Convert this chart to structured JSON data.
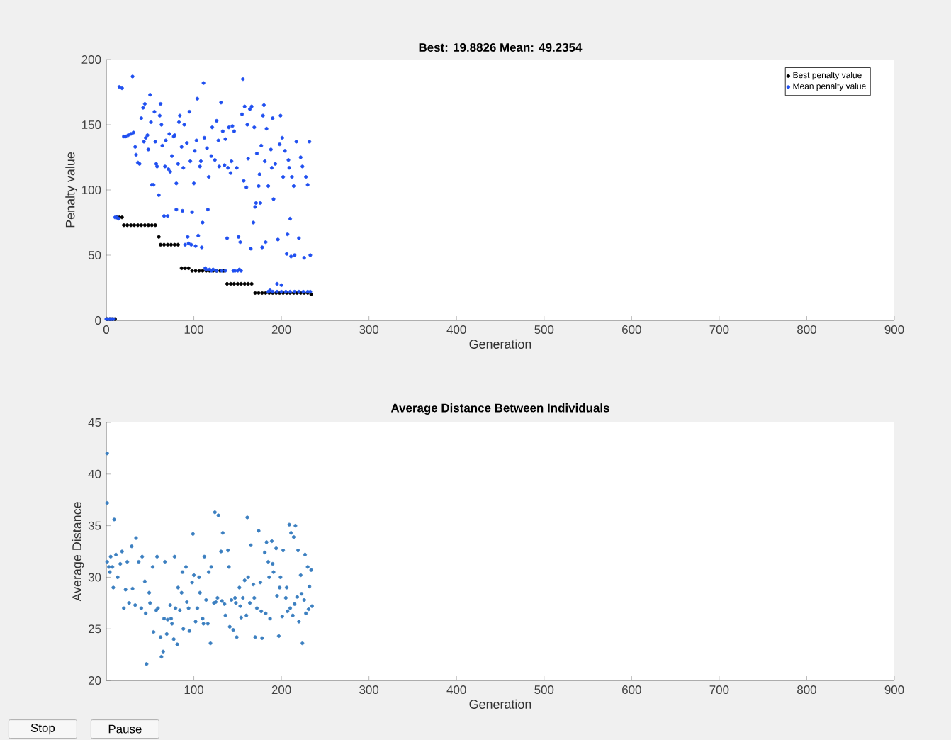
{
  "chart_data": [
    {
      "type": "scatter",
      "title": "Best: 19.8826 Mean: 49.2354",
      "xlabel": "Generation",
      "ylabel": "Penalty value",
      "xlim": [
        0,
        900
      ],
      "ylim": [
        0,
        200
      ],
      "xticks": [
        0,
        100,
        200,
        300,
        400,
        500,
        600,
        700,
        800,
        900
      ],
      "yticks": [
        0,
        50,
        100,
        150,
        200
      ],
      "grid": false,
      "legend": "top right",
      "marker": "circle",
      "series": [
        {
          "name": "Best penalty value",
          "color": "#000000",
          "x": [
            1,
            4,
            7,
            10,
            12,
            15,
            18,
            20,
            24,
            28,
            32,
            36,
            40,
            44,
            48,
            52,
            56,
            60,
            62,
            66,
            70,
            74,
            78,
            82,
            86,
            90,
            94,
            98,
            102,
            106,
            110,
            114,
            118,
            122,
            126,
            130,
            134,
            138,
            142,
            146,
            150,
            154,
            158,
            162,
            166,
            170,
            174,
            178,
            182,
            186,
            190,
            194,
            198,
            202,
            206,
            210,
            214,
            218,
            222,
            226,
            230,
            234
          ],
          "values": [
            1,
            1,
            1,
            1,
            79,
            79,
            79,
            73,
            73,
            73,
            73,
            73,
            73,
            73,
            73,
            73,
            73,
            64,
            58,
            58,
            58,
            58,
            58,
            58,
            40,
            40,
            40,
            38,
            38,
            38,
            38,
            38,
            38,
            38,
            38,
            38,
            38,
            28,
            28,
            28,
            28,
            28,
            28,
            28,
            28,
            21,
            21,
            21,
            21,
            21,
            21,
            21,
            21,
            21,
            21,
            21,
            21,
            21,
            21,
            21,
            21,
            20
          ]
        },
        {
          "name": "Mean penalty value",
          "color": "#1f4ff0",
          "x": [
            0,
            2,
            4,
            6,
            8,
            10,
            12,
            14,
            15,
            18,
            20,
            22,
            25,
            28,
            30,
            31,
            33,
            34,
            36,
            38,
            40,
            42,
            43,
            44,
            45,
            47,
            48,
            50,
            51,
            52,
            54,
            55,
            56,
            57,
            58,
            60,
            61,
            62,
            63,
            64,
            66,
            67,
            68,
            70,
            71,
            72,
            73,
            75,
            77,
            78,
            80,
            80,
            82,
            83,
            84,
            86,
            87,
            88,
            89,
            90,
            92,
            93,
            94,
            95,
            96,
            97,
            98,
            100,
            101,
            102,
            103,
            104,
            105,
            107,
            108,
            109,
            110,
            111,
            112,
            113,
            114,
            115,
            116,
            117,
            118,
            120,
            120,
            121,
            122,
            124,
            126,
            126,
            128,
            129,
            131,
            132,
            133,
            135,
            136,
            136,
            138,
            139,
            140,
            142,
            143,
            144,
            145,
            146,
            147,
            149,
            150,
            151,
            152,
            153,
            154,
            155,
            156,
            157,
            158,
            160,
            161,
            162,
            164,
            165,
            166,
            168,
            169,
            170,
            171,
            172,
            174,
            175,
            176,
            177,
            178,
            179,
            180,
            181,
            182,
            183,
            185,
            185,
            187,
            188,
            189,
            190,
            190,
            191,
            193,
            195,
            195,
            196,
            198,
            199,
            200,
            200,
            201,
            202,
            204,
            205,
            206,
            207,
            208,
            209,
            210,
            210,
            211,
            212,
            214,
            215,
            215,
            217,
            220,
            220,
            222,
            224,
            225,
            226,
            228,
            230,
            230,
            232,
            233,
            233
          ],
          "values": [
            1,
            1,
            1,
            1,
            1,
            79,
            79,
            78,
            179,
            178,
            141,
            141,
            142,
            143,
            187,
            144,
            133,
            127,
            121,
            120,
            155,
            163,
            137,
            166,
            140,
            142,
            131,
            173,
            152,
            104,
            104,
            160,
            137,
            120,
            118,
            96,
            157,
            166,
            150,
            134,
            80,
            118,
            138,
            80,
            116,
            143,
            114,
            126,
            141,
            142,
            85,
            105,
            120,
            152,
            157,
            133,
            84,
            117,
            150,
            58,
            136,
            64,
            59,
            160,
            122,
            58,
            83,
            105,
            130,
            57,
            138,
            170,
            65,
            118,
            122,
            56,
            75,
            182,
            140,
            40,
            39,
            132,
            85,
            110,
            39,
            126,
            38,
            148,
            39,
            123,
            153,
            38,
            138,
            118,
            167,
            38,
            145,
            119,
            139,
            38,
            63,
            117,
            148,
            113,
            122,
            149,
            38,
            145,
            38,
            117,
            38,
            64,
            39,
            60,
            38,
            158,
            185,
            107,
            164,
            102,
            150,
            124,
            162,
            55,
            164,
            75,
            148,
            87,
            90,
            128,
            103,
            112,
            90,
            134,
            56,
            157,
            165,
            122,
            60,
            147,
            103,
            22,
            23,
            131,
            117,
            155,
            22,
            93,
            120,
            28,
            22,
            62,
            135,
            157,
            27,
            22,
            140,
            110,
            130,
            22,
            51,
            66,
            123,
            117,
            78,
            22,
            49,
            110,
            103,
            50,
            22,
            137,
            63,
            22,
            125,
            118,
            22,
            48,
            110,
            104,
            22,
            137,
            50,
            22
          ]
        }
      ]
    },
    {
      "type": "scatter",
      "title": "Average Distance Between Individuals",
      "xlabel": "Generation",
      "ylabel": "Average Distance",
      "xlim": [
        0,
        900
      ],
      "ylim": [
        20,
        45
      ],
      "xticks": [
        100,
        200,
        300,
        400,
        500,
        600,
        700,
        800,
        900
      ],
      "yticks": [
        20,
        25,
        30,
        35,
        40,
        45
      ],
      "grid": false,
      "marker": "circle",
      "annotations": [
        "Stop",
        "Pause"
      ],
      "series": [
        {
          "color": "#3b7fc0",
          "x": [
            1,
            1,
            1,
            3,
            4,
            5,
            7,
            8,
            9,
            11,
            13,
            16,
            18,
            20,
            22,
            24,
            26,
            29,
            30,
            33,
            34,
            37,
            40,
            41,
            44,
            45,
            46,
            49,
            50,
            53,
            54,
            57,
            58,
            59,
            62,
            63,
            65,
            66,
            67,
            69,
            70,
            73,
            74,
            75,
            77,
            78,
            79,
            81,
            82,
            84,
            86,
            87,
            88,
            91,
            92,
            94,
            95,
            98,
            99,
            100,
            102,
            104,
            106,
            107,
            110,
            111,
            112,
            114,
            116,
            117,
            119,
            120,
            123,
            124,
            125,
            127,
            128,
            131,
            132,
            133,
            135,
            136,
            139,
            140,
            141,
            143,
            145,
            147,
            148,
            149,
            152,
            153,
            154,
            156,
            158,
            160,
            161,
            162,
            164,
            165,
            168,
            169,
            170,
            172,
            174,
            176,
            177,
            178,
            181,
            182,
            183,
            185,
            186,
            187,
            189,
            190,
            191,
            194,
            195,
            197,
            198,
            199,
            201,
            202,
            205,
            206,
            207,
            209,
            210,
            211,
            213,
            214,
            215,
            216,
            218,
            219,
            220,
            222,
            223,
            224,
            226,
            227,
            228,
            230,
            231,
            232,
            234,
            235
          ],
          "values": [
            42,
            37.2,
            31.5,
            31,
            30.5,
            32,
            31,
            29,
            35.6,
            32.2,
            30,
            31.3,
            32.5,
            27,
            28.8,
            31.5,
            27.5,
            33,
            28.9,
            27.3,
            33.8,
            31.5,
            27,
            32,
            29.6,
            26.5,
            21.6,
            28.5,
            27.5,
            31,
            24.7,
            26.8,
            32,
            27,
            24.2,
            22.3,
            22.8,
            26,
            31.5,
            24.5,
            25.9,
            27.3,
            26,
            25.5,
            24,
            32,
            27,
            23.5,
            29,
            26.8,
            28.5,
            30.5,
            25,
            31,
            27.6,
            27,
            24.8,
            29.5,
            34.2,
            30.2,
            25.7,
            27,
            30,
            28.5,
            26,
            25.5,
            32,
            27.8,
            25.5,
            30.5,
            23.6,
            31,
            27.5,
            36.3,
            27.6,
            28,
            36,
            32.5,
            27.7,
            34.3,
            27.4,
            26.3,
            32.6,
            31,
            25.2,
            27.8,
            24.9,
            28,
            27.5,
            24.2,
            29,
            27.2,
            26.1,
            28,
            29.7,
            26.3,
            35.8,
            30,
            27.5,
            33.1,
            29.3,
            28,
            24.2,
            27,
            34.5,
            29.5,
            26.7,
            24.1,
            32.4,
            26.5,
            33.4,
            31.5,
            30,
            26,
            33.5,
            31.3,
            30.5,
            32.8,
            28.2,
            24.3,
            29,
            30,
            26.2,
            32.6,
            28,
            29,
            26.7,
            35.1,
            27,
            34.3,
            26.3,
            33.9,
            27.4,
            35,
            28.1,
            32.6,
            25.7,
            30.2,
            28.4,
            23.6,
            27.8,
            32.2,
            26.5,
            31,
            26.9,
            29.1,
            30.7,
            27.2
          ]
        }
      ]
    }
  ]
}
